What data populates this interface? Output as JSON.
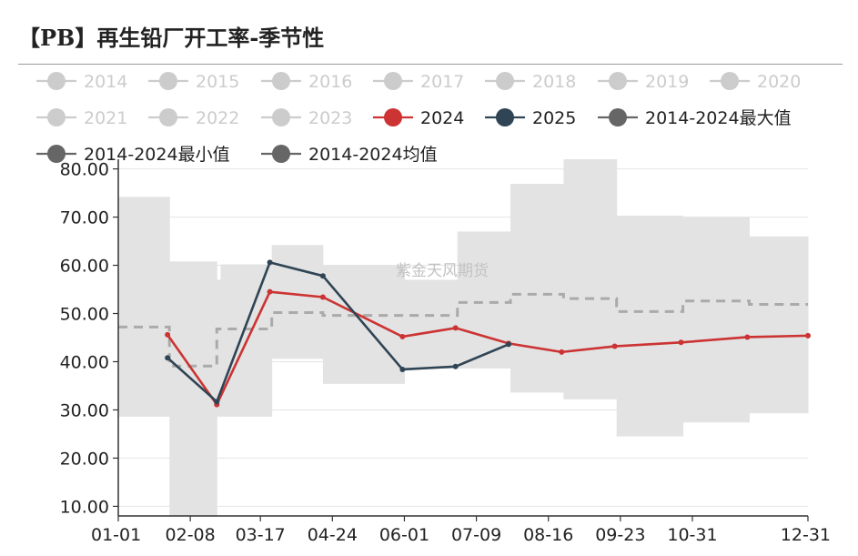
{
  "title": "【PB】再生铅厂开工率-季节性",
  "watermark": "紫金天风期货",
  "chart_data": {
    "type": "line",
    "x_ticks": [
      "01-01",
      "02-08",
      "03-17",
      "04-24",
      "06-01",
      "07-09",
      "08-16",
      "09-23",
      "10-31",
      "12-31"
    ],
    "y_ticks": [
      "10.00",
      "20.00",
      "30.00",
      "40.00",
      "50.00",
      "60.00",
      "70.00",
      "80.00"
    ],
    "xlim": [
      "01-01",
      "12-31"
    ],
    "ylim": [
      8,
      82
    ],
    "grid": "horizontal",
    "legend_position": "top",
    "colors": {
      "inactive": "#cccccc",
      "s2024": "#cc3333",
      "s2025": "#2f4454",
      "range": "#e3e3e3",
      "mean": "#aaaaaa",
      "stat": "#666666"
    },
    "legend": [
      {
        "name": "2014",
        "active": false
      },
      {
        "name": "2015",
        "active": false
      },
      {
        "name": "2016",
        "active": false
      },
      {
        "name": "2017",
        "active": false
      },
      {
        "name": "2018",
        "active": false
      },
      {
        "name": "2019",
        "active": false
      },
      {
        "name": "2020",
        "active": false
      },
      {
        "name": "2021",
        "active": false
      },
      {
        "name": "2022",
        "active": false
      },
      {
        "name": "2023",
        "active": false
      },
      {
        "name": "2024",
        "active": true,
        "color": "#cc3333"
      },
      {
        "name": "2025",
        "active": true,
        "color": "#2f4454"
      },
      {
        "name": "2014-2024最大值",
        "active": true,
        "color": "#666666"
      },
      {
        "name": "2014-2024最小值",
        "active": true,
        "color": "#666666"
      },
      {
        "name": "2014-2024均值",
        "active": true,
        "color": "#666666"
      }
    ],
    "series": [
      {
        "name": "2024",
        "points": [
          {
            "x": "01-27",
            "y": 45.6
          },
          {
            "x": "02-22",
            "y": 31.1
          },
          {
            "x": "03-22",
            "y": 54.5
          },
          {
            "x": "04-19",
            "y": 53.4
          },
          {
            "x": "05-31",
            "y": 45.2
          },
          {
            "x": "06-28",
            "y": 47.0
          },
          {
            "x": "07-26",
            "y": 43.8
          },
          {
            "x": "08-23",
            "y": 42.0
          },
          {
            "x": "09-20",
            "y": 43.2
          },
          {
            "x": "10-25",
            "y": 44.0
          },
          {
            "x": "11-29",
            "y": 45.1
          },
          {
            "x": "12-31",
            "y": 45.4
          }
        ]
      },
      {
        "name": "2025",
        "points": [
          {
            "x": "01-27",
            "y": 40.8
          },
          {
            "x": "02-22",
            "y": 31.7
          },
          {
            "x": "03-22",
            "y": 60.6
          },
          {
            "x": "04-19",
            "y": 57.8
          },
          {
            "x": "05-31",
            "y": 38.4
          },
          {
            "x": "06-28",
            "y": 39.0
          },
          {
            "x": "07-26",
            "y": 43.6
          }
        ]
      },
      {
        "name": "2014-2024最大值",
        "steps": [
          {
            "x0": "01-01",
            "x1": "01-28",
            "y": 74.2
          },
          {
            "x0": "01-28",
            "x1": "02-22",
            "y": 60.8
          },
          {
            "x0": "02-22",
            "x1": "02-24",
            "y": 57.0
          },
          {
            "x0": "02-24",
            "x1": "03-23",
            "y": 60.2
          },
          {
            "x0": "03-23",
            "x1": "04-19",
            "y": 64.2
          },
          {
            "x0": "04-19",
            "x1": "06-01",
            "y": 60.0
          },
          {
            "x0": "06-01",
            "x1": "06-29",
            "y": 57.0
          },
          {
            "x0": "06-29",
            "x1": "07-27",
            "y": 67.0
          },
          {
            "x0": "07-27",
            "x1": "08-24",
            "y": 76.9
          },
          {
            "x0": "08-24",
            "x1": "09-21",
            "y": 82.0
          },
          {
            "x0": "09-21",
            "x1": "10-26",
            "y": 70.3
          },
          {
            "x0": "10-26",
            "x1": "11-30",
            "y": 70.0
          },
          {
            "x0": "11-30",
            "x1": "12-31",
            "y": 66.0
          }
        ]
      },
      {
        "name": "2014-2024最小值",
        "steps": [
          {
            "x0": "01-01",
            "x1": "01-28",
            "y": 28.6
          },
          {
            "x0": "01-28",
            "x1": "02-22",
            "y": 8.0
          },
          {
            "x0": "02-22",
            "x1": "03-23",
            "y": 28.6
          },
          {
            "x0": "03-23",
            "x1": "04-19",
            "y": 40.6
          },
          {
            "x0": "04-19",
            "x1": "06-01",
            "y": 35.4
          },
          {
            "x0": "06-01",
            "x1": "07-27",
            "y": 38.6
          },
          {
            "x0": "07-27",
            "x1": "08-24",
            "y": 33.6
          },
          {
            "x0": "08-24",
            "x1": "09-21",
            "y": 32.2
          },
          {
            "x0": "09-21",
            "x1": "10-26",
            "y": 24.5
          },
          {
            "x0": "10-26",
            "x1": "11-30",
            "y": 27.4
          },
          {
            "x0": "11-30",
            "x1": "12-31",
            "y": 29.3
          }
        ]
      },
      {
        "name": "2014-2024均值",
        "steps": [
          {
            "x0": "01-01",
            "x1": "01-28",
            "y": 47.2
          },
          {
            "x0": "01-28",
            "x1": "02-22",
            "y": 39.1
          },
          {
            "x0": "02-22",
            "x1": "03-23",
            "y": 46.8
          },
          {
            "x0": "03-23",
            "x1": "04-19",
            "y": 50.2
          },
          {
            "x0": "04-19",
            "x1": "06-01",
            "y": 49.6
          },
          {
            "x0": "06-01",
            "x1": "06-29",
            "y": 49.6
          },
          {
            "x0": "06-29",
            "x1": "07-27",
            "y": 52.3
          },
          {
            "x0": "07-27",
            "x1": "08-24",
            "y": 54.0
          },
          {
            "x0": "08-24",
            "x1": "09-21",
            "y": 53.1
          },
          {
            "x0": "09-21",
            "x1": "10-26",
            "y": 50.4
          },
          {
            "x0": "10-26",
            "x1": "11-30",
            "y": 52.6
          },
          {
            "x0": "11-30",
            "x1": "12-31",
            "y": 51.9
          }
        ]
      }
    ]
  }
}
